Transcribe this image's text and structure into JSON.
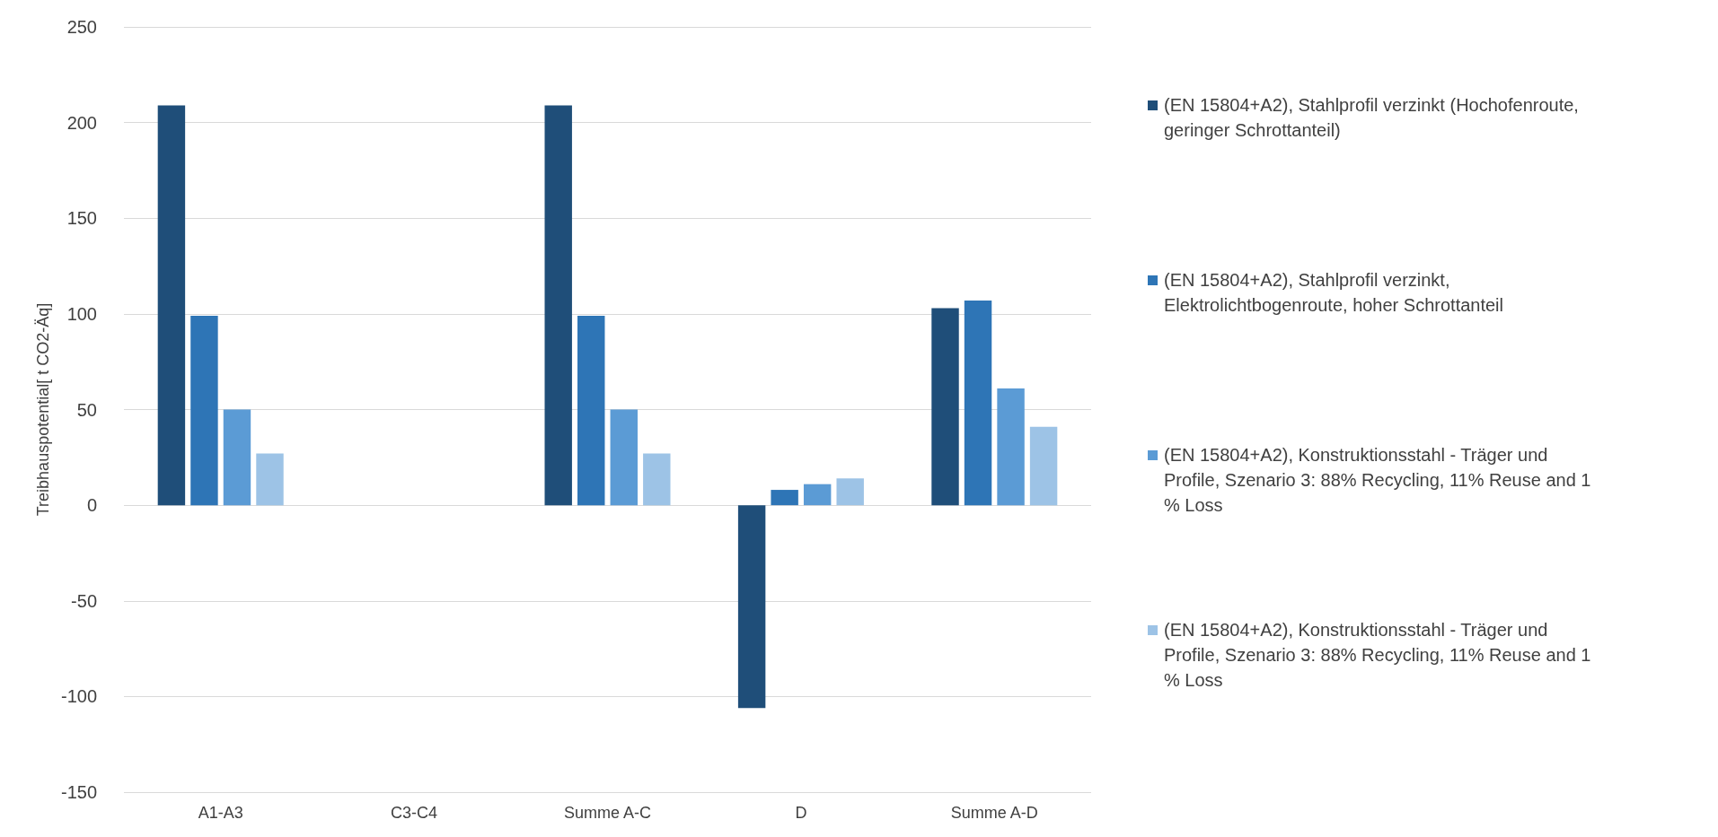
{
  "chart_data": {
    "type": "bar",
    "ylabel": "Treibhauspotential[ t CO2-Äq]",
    "categories": [
      "A1-A3",
      "C3-C4",
      "Summe A-C",
      "D",
      "Summe A-D"
    ],
    "series": [
      {
        "name": "(EN 15804+A2), Stahlprofil verzinkt (Hochofenroute, geringer Schrottanteil)",
        "color": "#1f4e79",
        "values": [
          209,
          0,
          209,
          -106,
          103
        ]
      },
      {
        "name": "(EN 15804+A2), Stahlprofil verzinkt, Elektrolichtbogenroute, hoher Schrottanteil",
        "color": "#2e75b6",
        "values": [
          99,
          0,
          99,
          8,
          107
        ]
      },
      {
        "name": "(EN 15804+A2), Konstruktionsstahl - Träger und Profile, Szenario 3: 88% Recycling, 11% Reuse and 1 % Loss",
        "color": "#5b9bd5",
        "values": [
          50,
          0,
          50,
          11,
          61
        ]
      },
      {
        "name": "(EN 15804+A2), Konstruktionsstahl - Träger und Profile, Szenario 3: 88% Recycling, 11% Reuse and 1 % Loss",
        "color": "#9dc3e6",
        "values": [
          27,
          0,
          27,
          14,
          41
        ]
      }
    ],
    "ylim": [
      -150,
      250
    ],
    "yticks": [
      -150,
      -100,
      -50,
      0,
      50,
      100,
      150,
      200,
      250
    ],
    "grid": "y",
    "legend": "right"
  }
}
